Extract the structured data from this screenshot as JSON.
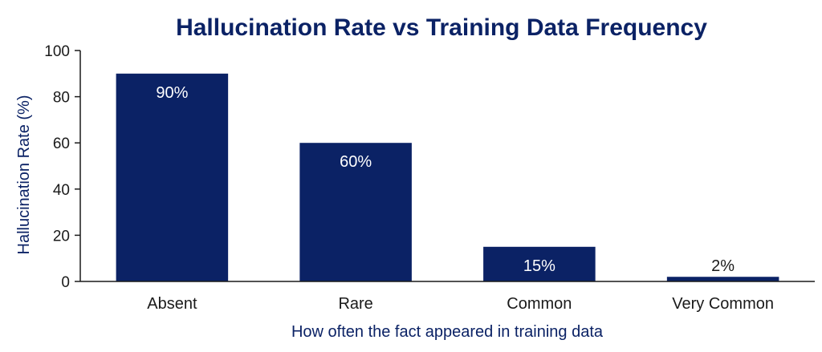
{
  "chart_data": {
    "type": "bar",
    "title": "Hallucination Rate vs Training Data Frequency",
    "xlabel": "How often the fact appeared in training data",
    "ylabel": "Hallucination Rate (%)",
    "categories": [
      "Absent",
      "Rare",
      "Common",
      "Very Common"
    ],
    "values": [
      90,
      60,
      15,
      2
    ],
    "data_labels": [
      "90%",
      "60%",
      "15%",
      "2%"
    ],
    "ylim": [
      0,
      100
    ],
    "yticks": [
      0,
      20,
      40,
      60,
      80,
      100
    ],
    "grid": false,
    "bar_color": "#0b2265"
  }
}
